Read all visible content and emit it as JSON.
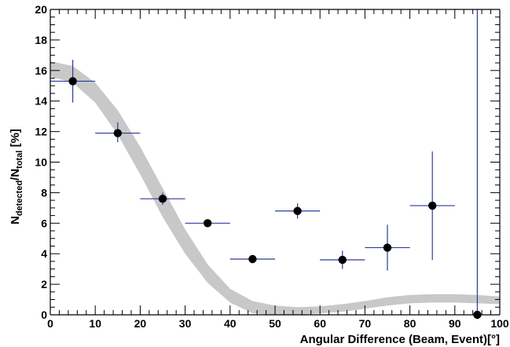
{
  "chart_data": {
    "type": "scatter",
    "xlabel": "Angular Difference (Beam, Event)[°]",
    "ylabel": {
      "parts": [
        {
          "text": "N",
          "style": "main"
        },
        {
          "text": "detected",
          "style": "sub"
        },
        {
          "text": "/N",
          "style": "main"
        },
        {
          "text": "total",
          "style": "sub"
        },
        {
          "text": " [%]",
          "style": "main"
        }
      ]
    },
    "xlim": [
      0,
      100
    ],
    "ylim": [
      0,
      20
    ],
    "x_ticks": [
      0,
      10,
      20,
      30,
      40,
      50,
      60,
      70,
      80,
      90,
      100
    ],
    "x_tick_labels": [
      "0",
      "10",
      "20",
      "30",
      "40",
      "50",
      "60",
      "70",
      "80",
      "90",
      "100"
    ],
    "y_ticks": [
      0,
      2,
      4,
      6,
      8,
      10,
      12,
      14,
      16,
      18,
      20
    ],
    "y_tick_labels": [
      "0",
      "2",
      "4",
      "6",
      "8",
      "10",
      "12",
      "14",
      "16",
      "18",
      "20"
    ],
    "grid": false,
    "legend": "none",
    "colors": {
      "marker": "#000000",
      "error_bars": "#2b3a9c",
      "band": "#c8c8c8",
      "axes": "#000000"
    },
    "series": [
      {
        "kind": "points-with-errors",
        "x": [
          5,
          15,
          25,
          35,
          45,
          55,
          65,
          75,
          85,
          95
        ],
        "y": [
          15.3,
          11.9,
          7.6,
          6.0,
          3.65,
          6.8,
          3.6,
          4.4,
          7.15,
          0.0
        ],
        "xerr": [
          5,
          5,
          5,
          5,
          5,
          5,
          5,
          5,
          5,
          0
        ],
        "y_low": [
          13.9,
          11.3,
          7.2,
          5.75,
          3.4,
          6.3,
          3.0,
          2.9,
          3.6,
          0.0
        ],
        "y_high": [
          16.7,
          12.6,
          8.0,
          6.25,
          3.9,
          7.3,
          4.2,
          5.9,
          10.7,
          20.0
        ]
      },
      {
        "kind": "band",
        "x": [
          0,
          5,
          10,
          15,
          20,
          25,
          30,
          35,
          40,
          45,
          50,
          55,
          60,
          65,
          70,
          75,
          80,
          85,
          90,
          95,
          100
        ],
        "y_low": [
          15.6,
          15.2,
          13.9,
          11.8,
          9.2,
          6.4,
          4.0,
          2.1,
          0.8,
          0.1,
          0.0,
          0.0,
          0.1,
          0.2,
          0.4,
          0.6,
          0.75,
          0.8,
          0.8,
          0.75,
          0.7
        ],
        "y_high": [
          16.6,
          16.3,
          15.2,
          13.4,
          11.0,
          8.3,
          5.6,
          3.3,
          1.7,
          0.9,
          0.6,
          0.5,
          0.55,
          0.7,
          0.9,
          1.15,
          1.3,
          1.35,
          1.35,
          1.3,
          1.2
        ]
      }
    ]
  }
}
